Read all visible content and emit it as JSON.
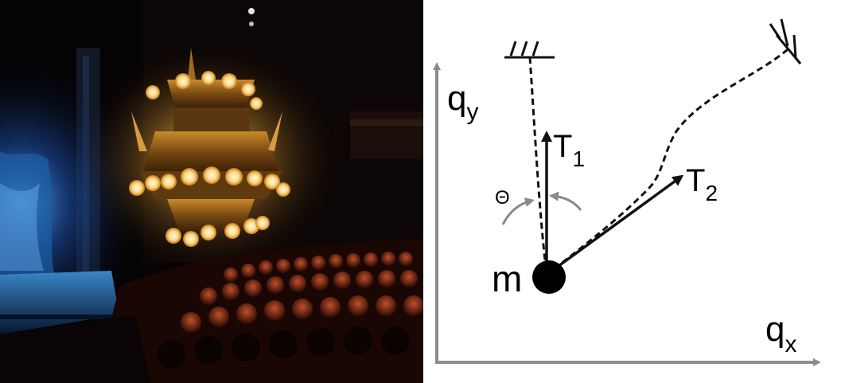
{
  "photo": {
    "description_icon": "theater-chandelier-photo"
  },
  "diagram": {
    "axis_x_label": "q",
    "axis_x_sub": "x",
    "axis_y_label": "q",
    "axis_y_sub": "y",
    "mass_label": "m",
    "tension1_label": "T",
    "tension1_sub": "1",
    "tension2_label": "T",
    "tension2_sub": "2",
    "angle_label": "Θ",
    "colors": {
      "axis": "#8c8c8c",
      "vector": "#111111",
      "angle_arrow": "#8a8a8a",
      "mass": "#000000"
    }
  }
}
